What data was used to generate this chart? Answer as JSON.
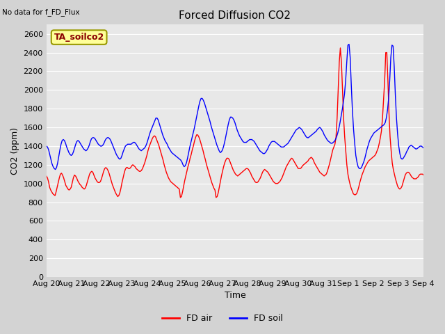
{
  "title": "Forced Diffusion CO2",
  "ylabel": "CO2 (ppm)",
  "xlabel": "Time",
  "top_left_text": "No data for f_FD_Flux",
  "annotation_box": "TA_soilco2",
  "ylim": [
    0,
    2700
  ],
  "yticks": [
    0,
    200,
    400,
    600,
    800,
    1000,
    1200,
    1400,
    1600,
    1800,
    2000,
    2200,
    2400,
    2600
  ],
  "background_color": "#e8e8e8",
  "fd_air_color": "#ff0000",
  "fd_soil_color": "#0000ff",
  "line_width": 1.0,
  "fd_air_data": [
    1080,
    1060,
    1020,
    960,
    930,
    910,
    890,
    880,
    870,
    910,
    960,
    1010,
    1060,
    1100,
    1110,
    1090,
    1060,
    1020,
    980,
    960,
    940,
    930,
    940,
    960,
    1010,
    1060,
    1090,
    1080,
    1060,
    1030,
    1010,
    990,
    980,
    960,
    950,
    940,
    950,
    980,
    1020,
    1060,
    1100,
    1120,
    1130,
    1120,
    1090,
    1060,
    1040,
    1020,
    1010,
    1010,
    1020,
    1050,
    1090,
    1130,
    1160,
    1170,
    1160,
    1140,
    1110,
    1070,
    1030,
    990,
    960,
    930,
    900,
    880,
    860,
    870,
    900,
    950,
    1010,
    1060,
    1110,
    1150,
    1170,
    1170,
    1160,
    1160,
    1170,
    1190,
    1200,
    1190,
    1180,
    1160,
    1150,
    1140,
    1130,
    1130,
    1140,
    1160,
    1190,
    1220,
    1260,
    1300,
    1350,
    1390,
    1420,
    1450,
    1480,
    1500,
    1510,
    1500,
    1470,
    1440,
    1410,
    1370,
    1330,
    1290,
    1250,
    1200,
    1160,
    1120,
    1090,
    1060,
    1040,
    1020,
    1010,
    1000,
    990,
    980,
    970,
    960,
    950,
    940,
    850,
    860,
    910,
    970,
    1030,
    1080,
    1130,
    1180,
    1220,
    1270,
    1310,
    1360,
    1400,
    1450,
    1490,
    1520,
    1520,
    1500,
    1470,
    1430,
    1390,
    1350,
    1300,
    1260,
    1210,
    1170,
    1130,
    1090,
    1050,
    1010,
    980,
    950,
    930,
    850,
    860,
    900,
    960,
    1020,
    1080,
    1130,
    1180,
    1220,
    1250,
    1270,
    1270,
    1260,
    1230,
    1200,
    1170,
    1140,
    1120,
    1100,
    1090,
    1080,
    1090,
    1100,
    1110,
    1120,
    1130,
    1140,
    1150,
    1160,
    1160,
    1150,
    1130,
    1110,
    1080,
    1060,
    1040,
    1020,
    1010,
    1010,
    1020,
    1040,
    1060,
    1090,
    1120,
    1140,
    1150,
    1140,
    1130,
    1120,
    1100,
    1080,
    1060,
    1040,
    1020,
    1010,
    1000,
    1000,
    1000,
    1010,
    1020,
    1040,
    1060,
    1090,
    1120,
    1150,
    1180,
    1200,
    1220,
    1240,
    1260,
    1270,
    1260,
    1240,
    1220,
    1200,
    1180,
    1160,
    1160,
    1160,
    1170,
    1190,
    1200,
    1210,
    1220,
    1230,
    1240,
    1260,
    1270,
    1280,
    1270,
    1250,
    1220,
    1200,
    1180,
    1160,
    1140,
    1120,
    1110,
    1100,
    1090,
    1080,
    1090,
    1100,
    1130,
    1170,
    1210,
    1260,
    1310,
    1360,
    1390,
    1420,
    1500,
    1700,
    2000,
    2300,
    2450,
    2300,
    2000,
    1700,
    1500,
    1350,
    1200,
    1100,
    1040,
    990,
    950,
    920,
    890,
    880,
    880,
    890,
    920,
    960,
    1010,
    1050,
    1090,
    1120,
    1150,
    1180,
    1200,
    1220,
    1240,
    1250,
    1260,
    1270,
    1280,
    1290,
    1300,
    1320,
    1350,
    1380,
    1430,
    1490,
    1560,
    1700,
    1900,
    2100,
    2400,
    2400,
    2100,
    1750,
    1500,
    1350,
    1220,
    1150,
    1100,
    1050,
    1010,
    970,
    950,
    940,
    950,
    970,
    1010,
    1050,
    1090,
    1110,
    1120,
    1120,
    1110,
    1090,
    1070,
    1060,
    1050,
    1050,
    1050,
    1060,
    1070,
    1090,
    1100,
    1100,
    1100,
    1090
  ],
  "fd_soil_data": [
    1400,
    1390,
    1360,
    1310,
    1260,
    1210,
    1180,
    1160,
    1150,
    1170,
    1220,
    1290,
    1360,
    1420,
    1460,
    1470,
    1460,
    1430,
    1390,
    1360,
    1330,
    1310,
    1300,
    1310,
    1340,
    1380,
    1420,
    1450,
    1460,
    1450,
    1430,
    1410,
    1390,
    1370,
    1360,
    1350,
    1360,
    1380,
    1410,
    1450,
    1480,
    1490,
    1490,
    1480,
    1460,
    1440,
    1420,
    1410,
    1400,
    1400,
    1410,
    1430,
    1460,
    1480,
    1490,
    1490,
    1480,
    1460,
    1430,
    1400,
    1370,
    1340,
    1310,
    1290,
    1270,
    1260,
    1270,
    1300,
    1340,
    1370,
    1400,
    1410,
    1420,
    1420,
    1420,
    1420,
    1430,
    1440,
    1440,
    1430,
    1410,
    1390,
    1370,
    1360,
    1350,
    1360,
    1370,
    1380,
    1400,
    1430,
    1470,
    1510,
    1550,
    1580,
    1610,
    1640,
    1670,
    1700,
    1700,
    1680,
    1640,
    1600,
    1560,
    1520,
    1490,
    1460,
    1440,
    1420,
    1390,
    1370,
    1350,
    1330,
    1320,
    1310,
    1300,
    1290,
    1280,
    1270,
    1260,
    1250,
    1230,
    1200,
    1180,
    1190,
    1220,
    1270,
    1330,
    1390,
    1440,
    1490,
    1540,
    1590,
    1650,
    1710,
    1770,
    1830,
    1880,
    1910,
    1910,
    1890,
    1860,
    1820,
    1780,
    1740,
    1700,
    1660,
    1610,
    1570,
    1530,
    1490,
    1450,
    1410,
    1380,
    1350,
    1330,
    1340,
    1360,
    1400,
    1450,
    1510,
    1570,
    1630,
    1680,
    1710,
    1710,
    1700,
    1680,
    1650,
    1610,
    1570,
    1540,
    1510,
    1490,
    1470,
    1450,
    1440,
    1440,
    1440,
    1450,
    1460,
    1470,
    1470,
    1470,
    1460,
    1450,
    1430,
    1410,
    1390,
    1370,
    1350,
    1340,
    1330,
    1320,
    1320,
    1330,
    1350,
    1370,
    1400,
    1420,
    1440,
    1450,
    1450,
    1450,
    1440,
    1430,
    1420,
    1410,
    1400,
    1390,
    1390,
    1390,
    1400,
    1410,
    1420,
    1430,
    1450,
    1470,
    1490,
    1510,
    1530,
    1550,
    1570,
    1580,
    1590,
    1600,
    1590,
    1580,
    1560,
    1540,
    1520,
    1500,
    1490,
    1490,
    1500,
    1510,
    1520,
    1530,
    1540,
    1550,
    1560,
    1580,
    1590,
    1600,
    1590,
    1570,
    1550,
    1520,
    1500,
    1480,
    1460,
    1450,
    1440,
    1430,
    1430,
    1440,
    1450,
    1470,
    1500,
    1540,
    1590,
    1650,
    1720,
    1790,
    1870,
    1960,
    2100,
    2300,
    2480,
    2490,
    2350,
    2050,
    1780,
    1580,
    1430,
    1300,
    1230,
    1180,
    1160,
    1160,
    1170,
    1200,
    1230,
    1270,
    1320,
    1370,
    1410,
    1450,
    1480,
    1500,
    1520,
    1540,
    1550,
    1560,
    1570,
    1580,
    1590,
    1600,
    1610,
    1620,
    1630,
    1650,
    1700,
    1780,
    1900,
    2100,
    2350,
    2480,
    2470,
    2250,
    1950,
    1700,
    1530,
    1400,
    1320,
    1270,
    1260,
    1270,
    1290,
    1310,
    1340,
    1360,
    1390,
    1400,
    1410,
    1400,
    1390,
    1380,
    1370,
    1370,
    1380,
    1390,
    1400,
    1400,
    1390,
    1380
  ]
}
